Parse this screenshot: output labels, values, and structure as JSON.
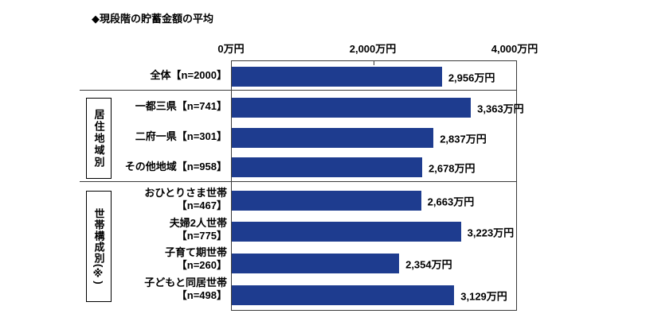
{
  "title": "◆現段階の貯蓄金額の平均",
  "chart_data": {
    "type": "bar",
    "orientation": "horizontal",
    "title": "◆現段階の貯蓄金額の平均",
    "unit": "万円",
    "bar_color": "#1e3c8f",
    "x_axis": {
      "min": 0,
      "max": 4000,
      "ticks": [
        "0万円",
        "2,000万円",
        "4,000万円"
      ],
      "grid": false
    },
    "groups": [
      {
        "label": "居住地域別"
      },
      {
        "label": "世帯構成別(※)"
      }
    ],
    "rows": [
      {
        "lines": [
          "全体【n=2000】"
        ],
        "value": 2956,
        "value_label": "2,956万円"
      },
      {
        "lines": [
          "一都三県【n=741】"
        ],
        "value": 3363,
        "value_label": "3,363万円"
      },
      {
        "lines": [
          "二府一県【n=301】"
        ],
        "value": 2837,
        "value_label": "2,837万円"
      },
      {
        "lines": [
          "その他地域【n=958】"
        ],
        "value": 2678,
        "value_label": "2,678万円"
      },
      {
        "lines": [
          "おひとりさま世帯",
          "【n=467】"
        ],
        "value": 2663,
        "value_label": "2,663万円"
      },
      {
        "lines": [
          "夫婦2人世帯",
          "【n=775】"
        ],
        "value": 3223,
        "value_label": "3,223万円"
      },
      {
        "lines": [
          "子育て期世帯",
          "【n=260】"
        ],
        "value": 2354,
        "value_label": "2,354万円"
      },
      {
        "lines": [
          "子どもと同居世帯",
          "【n=498】"
        ],
        "value": 3129,
        "value_label": "3,129万円"
      }
    ]
  }
}
